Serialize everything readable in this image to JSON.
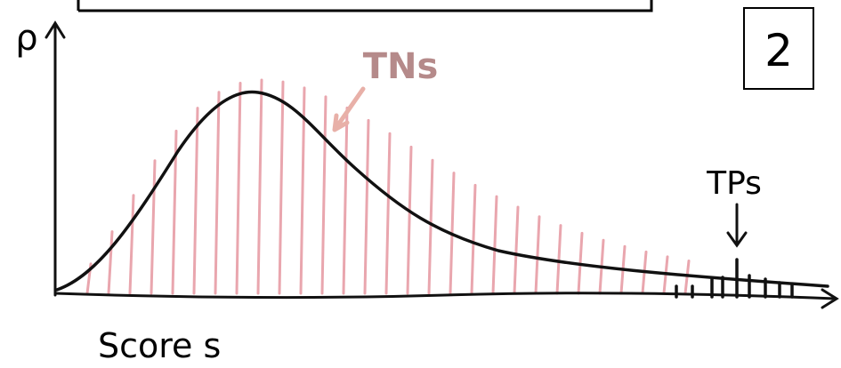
{
  "y_axis_label": "ρ",
  "x_axis_label": "Score s",
  "annotations": {
    "tns": "TNs",
    "tps": "TPs"
  },
  "panel_number": "2"
}
